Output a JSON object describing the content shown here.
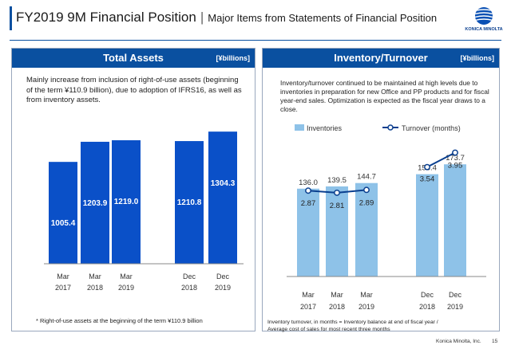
{
  "header": {
    "title": "FY2019 9M Financial Position",
    "separator": "|",
    "subtitle": "Major Items from Statements of Financial Position",
    "logo_text": "KONICA MINOLTA"
  },
  "left_panel": {
    "title": "Total Assets",
    "unit": "[¥billions]",
    "description": "Mainly increase from inclusion of right-of-use assets (beginning of the term ¥110.9 billion), due to adoption of IFRS16, as well as from inventory assets.",
    "footnote": "* Right-of-use assets at the beginning of the term ¥110.9 billion"
  },
  "right_panel": {
    "title": "Inventory/Turnover",
    "unit": "[¥billions]",
    "description": "Inventory/turnover continued to be maintained at high levels due to inventories in preparation for new Office and PP products and for fiscal year-end sales. Optimization is expected as the fiscal year draws to a close.",
    "footnote_line1": "Inventory turnover, in months = Inventory balance at end of fiscal year /",
    "footnote_line2": "Average cost of sales for most recent three months"
  },
  "chart_data": [
    {
      "type": "bar",
      "title": "Total Assets",
      "categories": [
        [
          "Mar",
          "2017"
        ],
        [
          "Mar",
          "2018"
        ],
        [
          "Mar",
          "2019"
        ],
        [
          "Dec",
          "2018"
        ],
        [
          "Dec",
          "2019"
        ]
      ],
      "values": [
        1005.4,
        1203.9,
        1219.0,
        1210.8,
        1304.3
      ],
      "labels": [
        "1005.4",
        "1203.9",
        "1219.0",
        "1210.8",
        "1304.3"
      ],
      "ylim": [
        0,
        1400
      ],
      "bar_color": "#0a50c8"
    },
    {
      "type": "bar+line",
      "title": "Inventory/Turnover",
      "categories": [
        [
          "Mar",
          "2017"
        ],
        [
          "Mar",
          "2018"
        ],
        [
          "Mar",
          "2019"
        ],
        [
          "Dec",
          "2018"
        ],
        [
          "Dec",
          "2019"
        ]
      ],
      "legend": [
        "Inventories",
        "Turnover (months)"
      ],
      "series": [
        {
          "name": "Inventories",
          "values": [
            136.0,
            139.5,
            144.7,
            158.4,
            173.7
          ],
          "labels": [
            "136.0",
            "139.5",
            "144.7",
            "158.4",
            "173.7"
          ],
          "color": "#8ec2e8"
        },
        {
          "name": "Turnover (months)",
          "values": [
            2.87,
            2.81,
            2.89,
            3.54,
            3.95
          ],
          "labels": [
            "2.87",
            "2.81",
            "2.89",
            "3.54",
            "3.95"
          ],
          "color": "#0a3f8f",
          "line_groups": [
            [
              0,
              1,
              2
            ],
            [
              3,
              4
            ]
          ]
        }
      ],
      "ylim": [
        0,
        190
      ],
      "y2lim": [
        0,
        6
      ]
    }
  ],
  "footer": {
    "company": "Konica Minolta, Inc.",
    "page": "15"
  }
}
